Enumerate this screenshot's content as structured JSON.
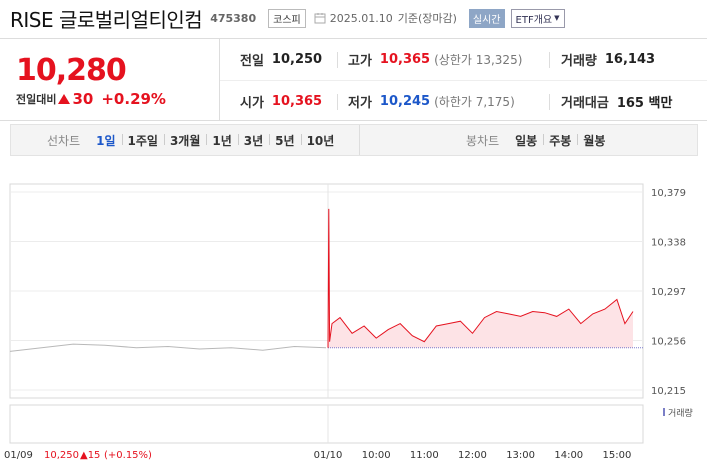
{
  "header": {
    "name": "RISE 글로벌리얼티인컴",
    "code": "475380",
    "market": "코스피",
    "date": "2025.01.10",
    "basis": "기준(장마감)",
    "realtime_label": "실시간",
    "etf_label": "ETF개요"
  },
  "summary": {
    "price": "10,280",
    "diff_label": "전일대비",
    "diff_value": "30",
    "diff_pct": "+0.29%",
    "prev_close_label": "전일",
    "prev_close": "10,250",
    "high_label": "고가",
    "high": "10,365",
    "upper_limit": "(상한가 13,325)",
    "volume_label": "거래량",
    "volume": "16,143",
    "open_label": "시가",
    "open": "10,365",
    "low_label": "저가",
    "low": "10,245",
    "lower_limit": "(하한가 7,175)",
    "amount_label": "거래대금",
    "amount": "165 백만"
  },
  "periods": {
    "line_label": "선차트",
    "line_tabs": [
      "1일",
      "1주일",
      "3개월",
      "1년",
      "3년",
      "5년",
      "10년"
    ],
    "active": "1일",
    "candle_label": "봉차트",
    "candle_tabs": [
      "일봉",
      "주봉",
      "월봉"
    ]
  },
  "chart_data": {
    "type": "line",
    "y_ticks": [
      "10,379",
      "10,338",
      "10,297",
      "10,256",
      "10,215"
    ],
    "ylim": [
      10215,
      10379
    ],
    "x_ticks": [
      "01/10",
      "10:00",
      "11:00",
      "12:00",
      "13:00",
      "14:00",
      "15:00"
    ],
    "prev_session": {
      "name": "01/09",
      "x": [
        0,
        0.1,
        0.2,
        0.3,
        0.4,
        0.5,
        0.6,
        0.7,
        0.8,
        0.9,
        1.0
      ],
      "values": [
        10247,
        10250,
        10253,
        10252,
        10250,
        10251,
        10249,
        10250,
        10248,
        10251,
        10250
      ]
    },
    "series": [
      {
        "name": "01/10",
        "x": [
          "09:00",
          "09:01",
          "09:02",
          "09:05",
          "09:15",
          "09:30",
          "09:45",
          "10:00",
          "10:15",
          "10:30",
          "10:45",
          "11:00",
          "11:15",
          "11:30",
          "11:45",
          "12:00",
          "12:15",
          "12:30",
          "12:45",
          "13:00",
          "13:15",
          "13:30",
          "13:45",
          "14:00",
          "14:15",
          "14:30",
          "14:45",
          "15:00",
          "15:10",
          "15:20"
        ],
        "values": [
          10250,
          10365,
          10255,
          10270,
          10275,
          10262,
          10268,
          10258,
          10265,
          10270,
          10260,
          10255,
          10268,
          10270,
          10272,
          10262,
          10275,
          10280,
          10278,
          10276,
          10280,
          10279,
          10276,
          10282,
          10270,
          10278,
          10282,
          10290,
          10270,
          10280
        ]
      }
    ],
    "baseline": 10250,
    "volume_label": "거래량",
    "bottom_info": {
      "prev_date": "01/09",
      "prev_close": "10,250",
      "prev_change": "▲15",
      "prev_change_pct": "(+0.15%)"
    },
    "colors": {
      "today_line": "#e5121f",
      "today_fill": "#fde3e6",
      "prev_line": "#b8b8b8",
      "volume_bar": "#7b7fc7",
      "baseline": "#7a7acc"
    }
  }
}
